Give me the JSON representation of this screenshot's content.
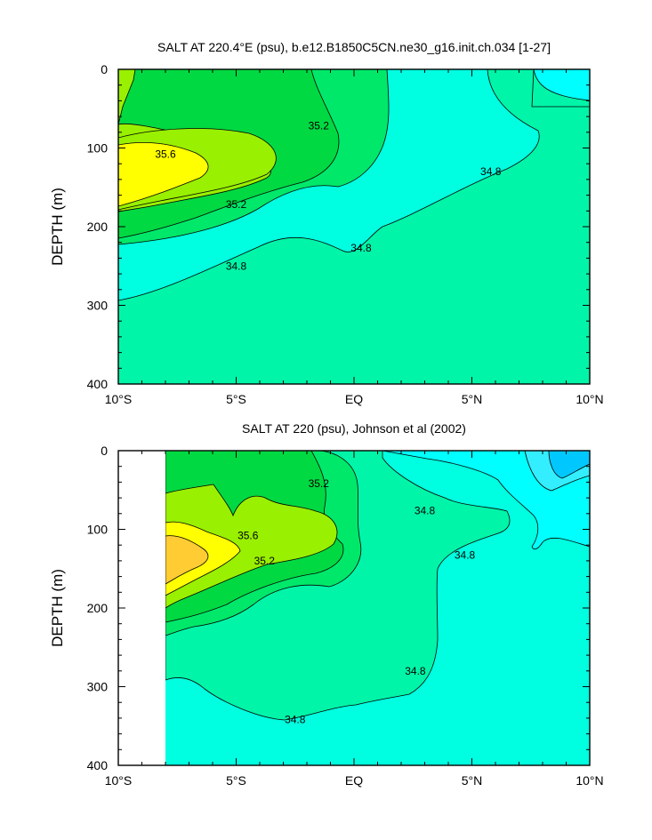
{
  "chart_data": [
    {
      "type": "contour",
      "title": "SALT AT 220.4°E (psu), b.e12.B1850C5CN.ne30_g16.init.ch.034 [1-27]",
      "ylabel": "DEPTH (m)",
      "xlabel": "",
      "x_ticks": [
        "10°S",
        "5°S",
        "EQ",
        "5°N",
        "10°N"
      ],
      "y_ticks": [
        "0",
        "100",
        "200",
        "300",
        "400"
      ],
      "xlim": [
        -10,
        10
      ],
      "ylim": [
        0,
        400
      ],
      "y_inverted": true,
      "contour_levels": [
        34.8,
        35.0,
        35.2,
        35.4,
        35.6,
        35.8
      ],
      "contour_labels": [
        {
          "text": "35.6",
          "lat": -8.0,
          "depth": 108
        },
        {
          "text": "35.2",
          "lat": -5.0,
          "depth": 172
        },
        {
          "text": "35.2",
          "lat": -1.5,
          "depth": 72
        },
        {
          "text": "34.8",
          "lat": -5.0,
          "depth": 250
        },
        {
          "text": "34.8",
          "lat": 0.3,
          "depth": 227
        },
        {
          "text": "34.8",
          "lat": 5.8,
          "depth": 130
        }
      ],
      "fill_colors": {
        "34.6": "#00ffff",
        "<34.8": "#00ffe0",
        "34.8-35.0": "#00f5a8",
        "35.0-35.2": "#00e86a",
        "35.2-35.4": "#00d942",
        "35.4-35.6": "#99f000",
        ">35.6": "#ffff00"
      }
    },
    {
      "type": "contour",
      "title": "SALT AT 220 (psu), Johnson et al (2002)",
      "ylabel": "DEPTH (m)",
      "xlabel": "",
      "x_ticks": [
        "10°S",
        "5°S",
        "EQ",
        "5°N",
        "10°N"
      ],
      "y_ticks": [
        "0",
        "100",
        "200",
        "300",
        "400"
      ],
      "xlim": [
        -10,
        10
      ],
      "ylim": [
        0,
        400
      ],
      "y_inverted": true,
      "data_start_lat": -8,
      "contour_levels": [
        34.6,
        34.8,
        35.0,
        35.2,
        35.4,
        35.6,
        35.8,
        36.0
      ],
      "contour_labels": [
        {
          "text": "35.2",
          "lat": -1.5,
          "depth": 42
        },
        {
          "text": "35.6",
          "lat": -4.5,
          "depth": 108
        },
        {
          "text": "35.2",
          "lat": -3.8,
          "depth": 140
        },
        {
          "text": "34.8",
          "lat": 3.0,
          "depth": 76
        },
        {
          "text": "34.8",
          "lat": 4.7,
          "depth": 133
        },
        {
          "text": "34.8",
          "lat": 2.6,
          "depth": 280
        },
        {
          "text": "34.8",
          "lat": -2.5,
          "depth": 342
        }
      ],
      "fill_colors": {
        "<34.6": "#00c8ff",
        "34.6": "#00ffff",
        "<34.8": "#00ffe0",
        "34.8-35.0": "#00f5a8",
        "35.0-35.2": "#00e86a",
        "35.2-35.4": "#00d942",
        "35.4-35.6": "#99f000",
        "35.6-35.8": "#ffff00",
        ">35.8": "#ffcc33"
      }
    }
  ]
}
